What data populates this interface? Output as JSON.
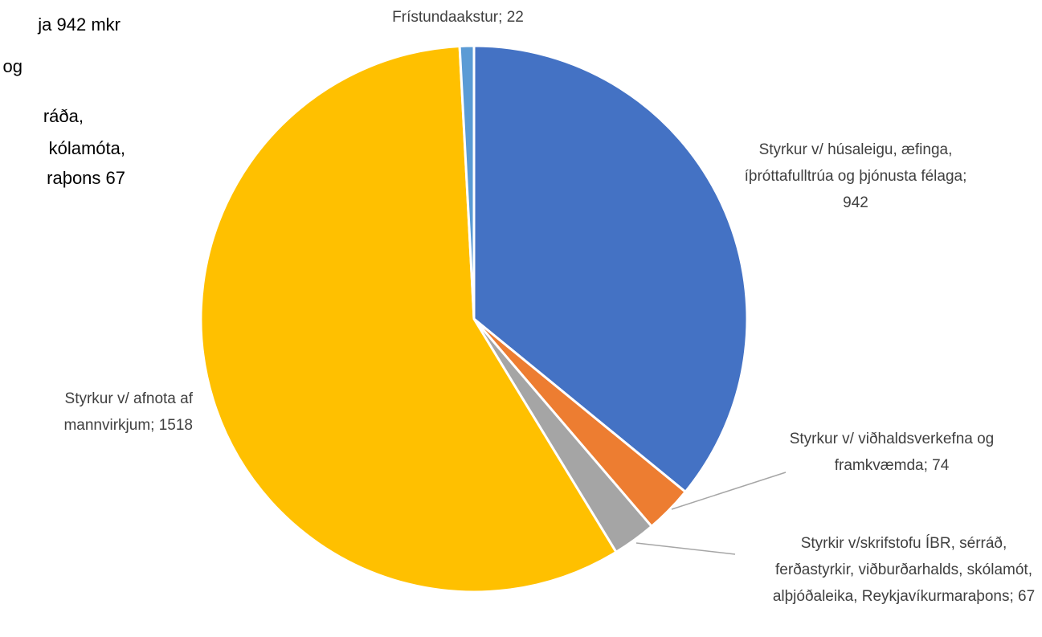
{
  "chart_data": {
    "type": "pie",
    "categories": [
      "Styrkur v/ húsaleigu, æfinga, íþróttafulltrúa og þjónusta félaga;",
      "Styrkur v/ viðhaldsverkefna og framkvæmda;",
      "Styrkir v/skrifstofu ÍBR, sérráð, ferðastyrkir, viðburðarhalds, skólamót, alþjóðaleika, Reykjavíkurmaraþons;",
      "Styrkur v/ afnota af mannvirkjum;",
      "Frístundaakstur;"
    ],
    "values": [
      942,
      74,
      67,
      1518,
      22
    ],
    "colors": [
      "#4472c4",
      "#ed7d31",
      "#a5a5a5",
      "#ffc000",
      "#5b9bd5"
    ]
  },
  "side_text": [
    "ja 942 mkr",
    "og",
    "ráða,",
    "kólamóta,",
    "raþons 67"
  ]
}
